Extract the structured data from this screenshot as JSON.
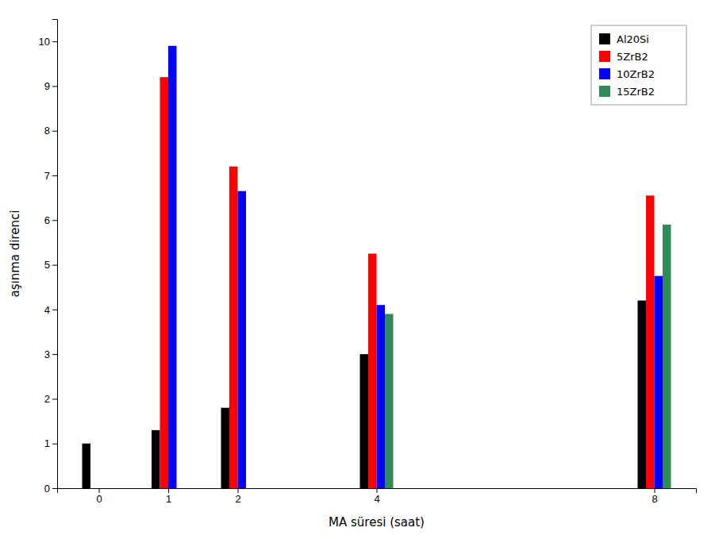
{
  "chart_data": {
    "type": "bar",
    "x": [
      0,
      1,
      2,
      4,
      8
    ],
    "series": [
      {
        "name": "Al20Si",
        "color": "#000000",
        "values": [
          1.0,
          1.3,
          1.8,
          3.0,
          4.2
        ]
      },
      {
        "name": "5ZrB2",
        "color": "#ff0000",
        "values": [
          null,
          9.2,
          7.2,
          5.25,
          6.55
        ]
      },
      {
        "name": "10ZrB2",
        "color": "#0000ff",
        "values": [
          null,
          9.9,
          6.65,
          4.1,
          4.75
        ]
      },
      {
        "name": "15ZrB2",
        "color": "#2e8b57",
        "values": [
          null,
          null,
          null,
          3.9,
          5.9
        ]
      }
    ],
    "xlabel": "MA süresi (saat)",
    "ylabel": "aşınma direnci",
    "xlim": [
      -0.6,
      8.6
    ],
    "xticks": [
      0,
      1,
      2,
      4,
      8
    ],
    "ylim": [
      0,
      10.5
    ],
    "yticks": [
      0,
      1,
      2,
      3,
      4,
      5,
      6,
      7,
      8,
      9,
      10
    ],
    "grid": false,
    "legend": "top-right"
  }
}
